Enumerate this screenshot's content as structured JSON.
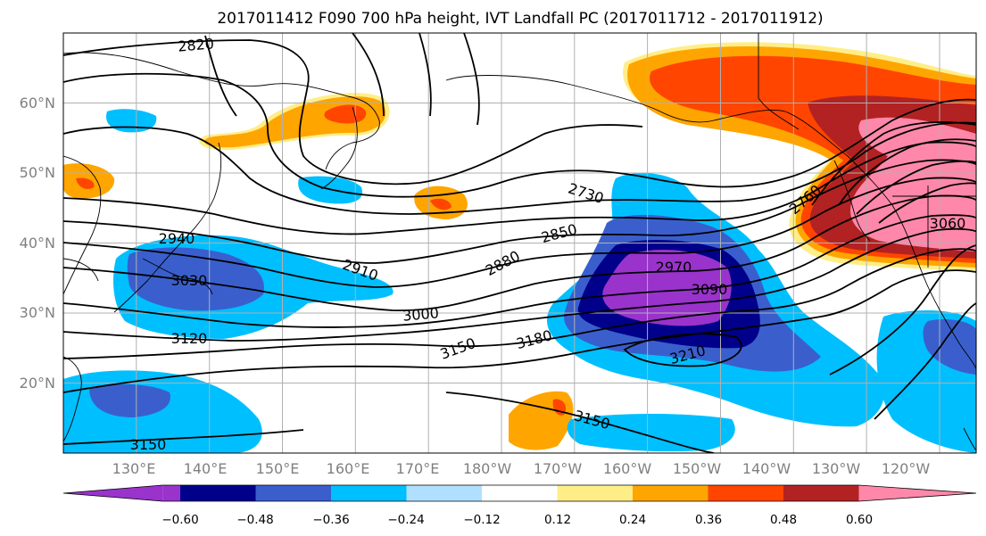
{
  "title": "2017011412 F090 700 hPa height, IVT Landfall PC (2017011712 - 2017011912)",
  "map": {
    "extent": {
      "lon_min": 120,
      "lon_max": 245,
      "lat_min": 10,
      "lat_max": 70
    },
    "lon_ticks": [
      {
        "lon": 130,
        "label": "130°E"
      },
      {
        "lon": 140,
        "label": "140°E"
      },
      {
        "lon": 150,
        "label": "150°E"
      },
      {
        "lon": 160,
        "label": "160°E"
      },
      {
        "lon": 170,
        "label": "170°E"
      },
      {
        "lon": 180,
        "label": "180°W"
      },
      {
        "lon": 190,
        "label": "170°W"
      },
      {
        "lon": 200,
        "label": "160°W"
      },
      {
        "lon": 210,
        "label": "150°W"
      },
      {
        "lon": 220,
        "label": "140°W"
      },
      {
        "lon": 230,
        "label": "130°W"
      },
      {
        "lon": 240,
        "label": "120°W"
      }
    ],
    "lat_ticks": [
      {
        "lat": 60,
        "label": "60°N"
      },
      {
        "lat": 50,
        "label": "50°N"
      },
      {
        "lat": 40,
        "label": "40°N"
      },
      {
        "lat": 30,
        "label": "30°N"
      },
      {
        "lat": 20,
        "label": "20°N"
      }
    ],
    "gridlines": true
  },
  "shading": {
    "variable": "IVT Landfall PC",
    "levels": [
      -0.6,
      -0.48,
      -0.36,
      -0.24,
      -0.12,
      0.12,
      0.24,
      0.36,
      0.48,
      0.6
    ],
    "colors": [
      "#9933cc",
      "#00008b",
      "#3a5fcd",
      "#00bfff",
      "#b0e0ff",
      "#ffffff",
      "#ffee88",
      "#ffa500",
      "#ff4500",
      "#b22222",
      "#ff88aa"
    ],
    "extend": "both"
  },
  "colorbar": {
    "tick_labels": [
      "−0.60",
      "−0.48",
      "−0.36",
      "−0.24",
      "−0.12",
      "0.12",
      "0.24",
      "0.36",
      "0.48",
      "0.60"
    ]
  },
  "contours": {
    "variable": "700 hPa height",
    "labels": [
      "2820",
      "2940",
      "3030",
      "2910",
      "2730",
      "2850",
      "2880",
      "2970",
      "3090",
      "3000",
      "3120",
      "3150",
      "3180",
      "3210",
      "3150",
      "3150",
      "2760",
      "3060"
    ]
  }
}
